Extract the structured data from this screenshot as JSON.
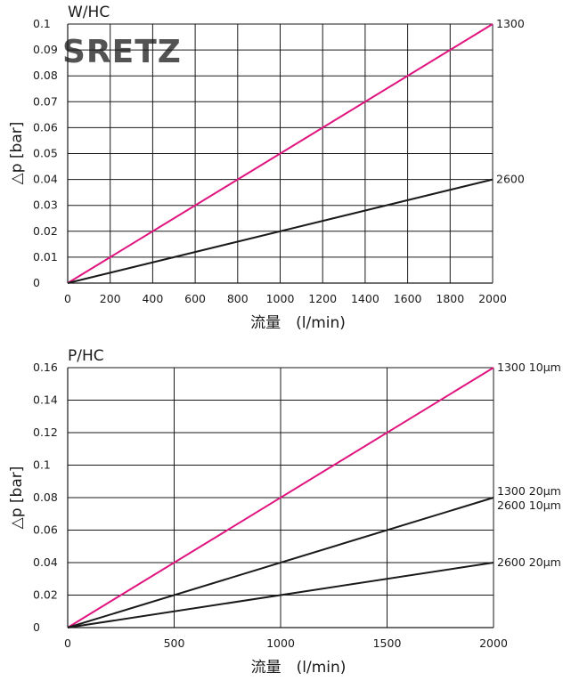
{
  "colors": {
    "magenta": "#e0157f",
    "dark": "#1a1a1a",
    "logo": "#f07a8e"
  },
  "watermark": "SRETZ",
  "chart_data": [
    {
      "type": "line",
      "title": "W/HC",
      "xlabel": "流量　(l/min)",
      "ylabel": "△p [bar]",
      "xlim": [
        0,
        2000
      ],
      "ylim": [
        0,
        0.1
      ],
      "xticks": [
        0,
        200,
        400,
        600,
        800,
        1000,
        1200,
        1400,
        1600,
        1800,
        2000
      ],
      "xtick_labels": [
        "0",
        "200",
        "400",
        "600",
        "800",
        "1000",
        "1200",
        "1400",
        "1600",
        "1800",
        "2000"
      ],
      "yticks": [
        0,
        0.01,
        0.02,
        0.03,
        0.04,
        0.05,
        0.06,
        0.07,
        0.08,
        0.09,
        0.1
      ],
      "ytick_labels": [
        "0",
        "0.01",
        "0.02",
        "0.03",
        "0.04",
        "0.05",
        "0.06",
        "0.07",
        "0.08",
        "0.09",
        "0.1"
      ],
      "grid": true,
      "series": [
        {
          "name": "1300",
          "label": "1300",
          "color": "#e0157f",
          "x": [
            0,
            2000
          ],
          "y": [
            0,
            0.1
          ]
        },
        {
          "name": "2600",
          "label": "2600",
          "color": "#1a1a1a",
          "x": [
            0,
            2000
          ],
          "y": [
            0,
            0.04
          ]
        }
      ]
    },
    {
      "type": "line",
      "title": "P/HC",
      "xlabel": "流量　(l/min)",
      "ylabel": "△p [bar]",
      "xlim": [
        0,
        2000
      ],
      "ylim": [
        0,
        0.16
      ],
      "xticks": [
        0,
        500,
        1000,
        1500,
        2000
      ],
      "xtick_labels": [
        "0",
        "500",
        "1000",
        "1500",
        "2000"
      ],
      "yticks": [
        0,
        0.02,
        0.04,
        0.06,
        0.08,
        0.1,
        0.12,
        0.14,
        0.16
      ],
      "ytick_labels": [
        "0",
        "0.02",
        "0.04",
        "0.06",
        "0.08",
        "0.1",
        "0.12",
        "0.14",
        "0.16"
      ],
      "grid": true,
      "series": [
        {
          "name": "1300 10µm",
          "label": "1300 10µm",
          "color": "#e0157f",
          "x": [
            0,
            2000
          ],
          "y": [
            0,
            0.16
          ]
        },
        {
          "name": "1300 20µm / 2600 10µm",
          "label": "1300 20µm",
          "label2": "2600 10µm",
          "color": "#1a1a1a",
          "x": [
            0,
            2000
          ],
          "y": [
            0,
            0.08
          ]
        },
        {
          "name": "2600 20µm",
          "label": "2600 20µm",
          "color": "#1a1a1a",
          "x": [
            0,
            2000
          ],
          "y": [
            0,
            0.04
          ]
        }
      ]
    }
  ]
}
